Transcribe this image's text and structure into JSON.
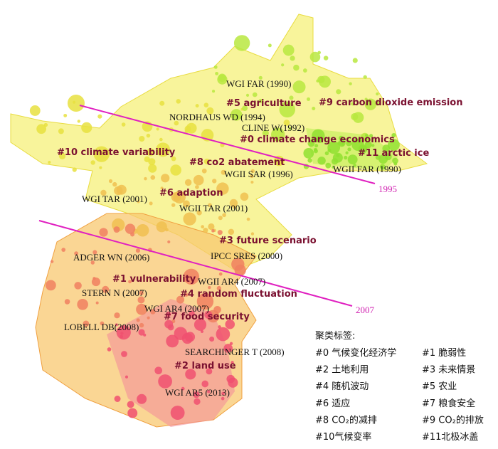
{
  "cluster_labels": [
    "#5 agriculture",
    "#9 carbon dioxide emission",
    "#0 climate change economics",
    "#10 climate variability",
    "#11 arctic ice",
    "#8 co2 abatement",
    "#6 adaption",
    "#3 future scenario",
    "#1 vulnerability",
    "#4 random fluctuation",
    "#7 food security",
    "#2 land use"
  ],
  "reference_labels": [
    "WGI FAR (1990)",
    "NORDHAUS WD (1994)",
    "CLINE W(1992)",
    "WGII FAR (1990)",
    "WGII SAR (1996)",
    "WGI TAR (2001)",
    "WGII TAR (2001)",
    "IPCC SRES (2000)",
    "ADGER WN (2006)",
    "WGII AR4 (2007)",
    "STERN N (2007)",
    "WGI AR4 (2007)",
    "LOBELL DB(2008)",
    "SEARCHINGER T (2008)",
    "WGI AR5 (2013)"
  ],
  "year_lines": [
    "1995",
    "2007"
  ],
  "legend": {
    "title": "聚类标签:",
    "items": [
      "#0 气候变化经济学",
      "#1 脆弱性",
      "#2 土地利用",
      "#3 未来情景",
      "#4 随机波动",
      "#5 农业",
      "#6 适应",
      "#7 粮食安全",
      "#8 CO₂的减排",
      "#9 CO₂的排放",
      "#10气候变率",
      "#11北极冰盖"
    ]
  }
}
